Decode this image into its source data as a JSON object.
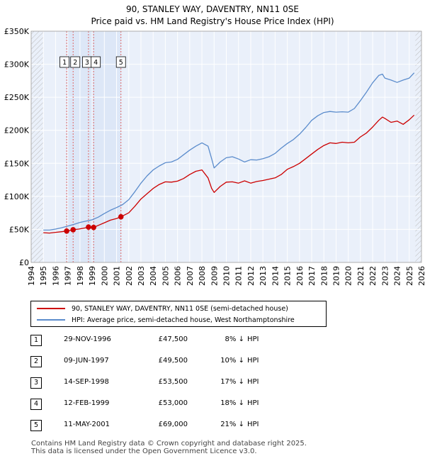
{
  "title": {
    "line1": "90, STANLEY WAY, DAVENTRY, NN11 0SE",
    "line2": "Price paid vs. HM Land Registry's House Price Index (HPI)"
  },
  "chart_data": {
    "type": "line",
    "title": "Price paid vs. HM Land Registry's House Price Index (HPI)",
    "xlabel": "",
    "ylabel": "",
    "xlim": [
      1994,
      2026
    ],
    "ylim": [
      0,
      350000
    ],
    "x_ticks": [
      "1994",
      "1995",
      "1996",
      "1997",
      "1998",
      "1999",
      "2000",
      "2001",
      "2002",
      "2003",
      "2004",
      "2005",
      "2006",
      "2007",
      "2008",
      "2009",
      "2010",
      "2011",
      "2012",
      "2013",
      "2014",
      "2015",
      "2016",
      "2017",
      "2018",
      "2019",
      "2020",
      "2021",
      "2022",
      "2023",
      "2024",
      "2025",
      "2026"
    ],
    "y_ticks": [
      {
        "value": 0,
        "label": "£0"
      },
      {
        "value": 50000,
        "label": "£50K"
      },
      {
        "value": 100000,
        "label": "£100K"
      },
      {
        "value": 150000,
        "label": "£150K"
      },
      {
        "value": 200000,
        "label": "£200K"
      },
      {
        "value": 250000,
        "label": "£250K"
      },
      {
        "value": 300000,
        "label": "£300K"
      },
      {
        "value": 350000,
        "label": "£350K"
      }
    ],
    "grid": true,
    "series": [
      {
        "name": "90, STANLEY WAY, DAVENTRY, NN11 0SE (semi-detached house)",
        "color": "#cc0000",
        "x": [
          1995.0,
          1995.5,
          1996.0,
          1996.5,
          1996.91,
          1997.44,
          1997.9,
          1998.5,
          1998.7,
          1999.12,
          1999.5,
          2000.0,
          2000.5,
          2001.0,
          2001.36,
          2002.0,
          2002.5,
          2003.0,
          2003.5,
          2004.0,
          2004.5,
          2005.0,
          2005.5,
          2006.0,
          2006.5,
          2007.0,
          2007.5,
          2008.0,
          2008.5,
          2008.8,
          2009.0,
          2009.5,
          2010.0,
          2010.5,
          2011.0,
          2011.5,
          2012.0,
          2012.5,
          2013.0,
          2013.5,
          2014.0,
          2014.5,
          2015.0,
          2015.5,
          2016.0,
          2016.5,
          2017.0,
          2017.5,
          2018.0,
          2018.5,
          2019.0,
          2019.5,
          2020.0,
          2020.5,
          2021.0,
          2021.5,
          2022.0,
          2022.5,
          2022.8,
          2023.0,
          2023.5,
          2024.0,
          2024.5,
          2025.0,
          2025.4
        ],
        "values": [
          45000,
          44500,
          45500,
          46500,
          47500,
          49500,
          50500,
          52500,
          53500,
          53000,
          56000,
          60000,
          64000,
          66500,
          69000,
          75000,
          85000,
          96000,
          104000,
          112000,
          118000,
          122000,
          121500,
          123000,
          127000,
          133000,
          138000,
          140000,
          128000,
          112000,
          106000,
          115000,
          121500,
          122000,
          120000,
          123500,
          120000,
          122500,
          124000,
          126000,
          128000,
          133000,
          141000,
          145000,
          150000,
          157000,
          164000,
          171000,
          177000,
          181000,
          180000,
          182000,
          181000,
          182000,
          190000,
          196000,
          205000,
          215000,
          220000,
          218000,
          212000,
          214000,
          209000,
          216000,
          223000
        ]
      },
      {
        "name": "HPI: Average price, semi-detached house, West Northamptonshire",
        "color": "#5b8ccc",
        "x": [
          1995.0,
          1995.5,
          1996.0,
          1996.5,
          1997.0,
          1997.5,
          1998.0,
          1998.5,
          1999.0,
          1999.5,
          2000.0,
          2000.5,
          2001.0,
          2001.5,
          2002.0,
          2002.5,
          2003.0,
          2003.5,
          2004.0,
          2004.5,
          2005.0,
          2005.5,
          2006.0,
          2006.5,
          2007.0,
          2007.5,
          2008.0,
          2008.5,
          2008.8,
          2009.0,
          2009.5,
          2010.0,
          2010.5,
          2011.0,
          2011.5,
          2012.0,
          2012.5,
          2013.0,
          2013.5,
          2014.0,
          2014.5,
          2015.0,
          2015.5,
          2016.0,
          2016.5,
          2017.0,
          2017.5,
          2018.0,
          2018.5,
          2019.0,
          2019.5,
          2020.0,
          2020.5,
          2021.0,
          2021.5,
          2022.0,
          2022.5,
          2022.8,
          2023.0,
          2023.5,
          2024.0,
          2024.5,
          2025.0,
          2025.4
        ],
        "values": [
          49000,
          49000,
          50500,
          52500,
          55000,
          57500,
          60500,
          62500,
          64500,
          68500,
          74000,
          79000,
          83000,
          87500,
          95000,
          107000,
          120000,
          131000,
          140000,
          146000,
          151000,
          152000,
          156000,
          163000,
          170000,
          176000,
          181000,
          176000,
          157000,
          143000,
          152000,
          158500,
          160000,
          156500,
          152000,
          155500,
          155000,
          157000,
          160000,
          165000,
          173000,
          180000,
          186000,
          194000,
          204000,
          215000,
          222000,
          227000,
          228500,
          227500,
          228000,
          227500,
          233000,
          245000,
          258000,
          272000,
          283000,
          285000,
          279000,
          276000,
          272500,
          276000,
          279000,
          287000
        ]
      }
    ],
    "sales": [
      {
        "label": "1",
        "x": 1996.91,
        "price": 47500
      },
      {
        "label": "2",
        "x": 1997.44,
        "price": 49500
      },
      {
        "label": "3",
        "x": 1998.7,
        "price": 53500
      },
      {
        "label": "4",
        "x": 1999.12,
        "price": 53000
      },
      {
        "label": "5",
        "x": 2001.36,
        "price": 69000
      }
    ]
  },
  "colors": {
    "plot_background": "#eaf0fa",
    "highlight_band": "#dde7f7",
    "grid": "#ffffff",
    "property_line": "#cc0000",
    "hpi_line": "#5b8ccc",
    "marker_line": "#dd6666",
    "hatch": "#bbbbbb"
  },
  "legend": {
    "property_label": "90, STANLEY WAY, DAVENTRY, NN11 0SE (semi-detached house)",
    "hpi_label": "HPI: Average price, semi-detached house, West Northamptonshire"
  },
  "sales_table": [
    {
      "num": "1",
      "date": "29-NOV-1996",
      "price": "£47,500",
      "pct": "8%",
      "arrow": "↓",
      "hpi": "HPI"
    },
    {
      "num": "2",
      "date": "09-JUN-1997",
      "price": "£49,500",
      "pct": "10%",
      "arrow": "↓",
      "hpi": "HPI"
    },
    {
      "num": "3",
      "date": "14-SEP-1998",
      "price": "£53,500",
      "pct": "17%",
      "arrow": "↓",
      "hpi": "HPI"
    },
    {
      "num": "4",
      "date": "12-FEB-1999",
      "price": "£53,000",
      "pct": "18%",
      "arrow": "↓",
      "hpi": "HPI"
    },
    {
      "num": "5",
      "date": "11-MAY-2001",
      "price": "£69,000",
      "pct": "21%",
      "arrow": "↓",
      "hpi": "HPI"
    }
  ],
  "footer": {
    "line1": "Contains HM Land Registry data © Crown copyright and database right 2025.",
    "line2": "This data is licensed under the Open Government Licence v3.0."
  }
}
